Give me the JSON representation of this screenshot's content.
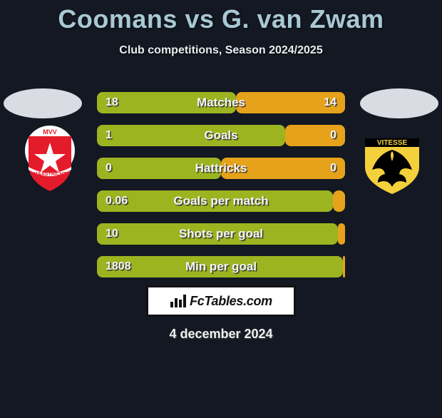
{
  "header": {
    "title": "Coomans vs G. van Zwam",
    "subtitle": "Club competitions, Season 2024/2025",
    "title_color": "#a8c8d4",
    "title_fontsize": 36,
    "subtitle_fontsize": 16
  },
  "background_color": "#131822",
  "bar_colors": {
    "left": "#9cb420",
    "right": "#e6a21a",
    "border_radius": 8
  },
  "stats": [
    {
      "label": "Matches",
      "left_val": "18",
      "right_val": "14",
      "left_pct": 56,
      "right_pct": 44
    },
    {
      "label": "Goals",
      "left_val": "1",
      "right_val": "0",
      "left_pct": 76,
      "right_pct": 24
    },
    {
      "label": "Hattricks",
      "left_val": "0",
      "right_val": "0",
      "left_pct": 50,
      "right_pct": 50
    },
    {
      "label": "Goals per match",
      "left_val": "0.06",
      "right_val": "",
      "left_pct": 95,
      "right_pct": 5
    },
    {
      "label": "Shots per goal",
      "left_val": "10",
      "right_val": "",
      "left_pct": 97,
      "right_pct": 3
    },
    {
      "label": "Min per goal",
      "left_val": "1808",
      "right_val": "",
      "left_pct": 99,
      "right_pct": 1
    }
  ],
  "clubs": {
    "left": {
      "name": "MVV Maastricht",
      "badge_bg": "#ffffff",
      "badge_main": "#e41b2b",
      "badge_accent": "#ffffff"
    },
    "right": {
      "name": "Vitesse",
      "badge_bg": "#131822",
      "badge_main": "#f4dô03c",
      "badge_main_fixed": "#f4d03c",
      "badge_accent": "#000000"
    }
  },
  "footer": {
    "site": "FcTables.com",
    "date": "4 december 2024"
  }
}
